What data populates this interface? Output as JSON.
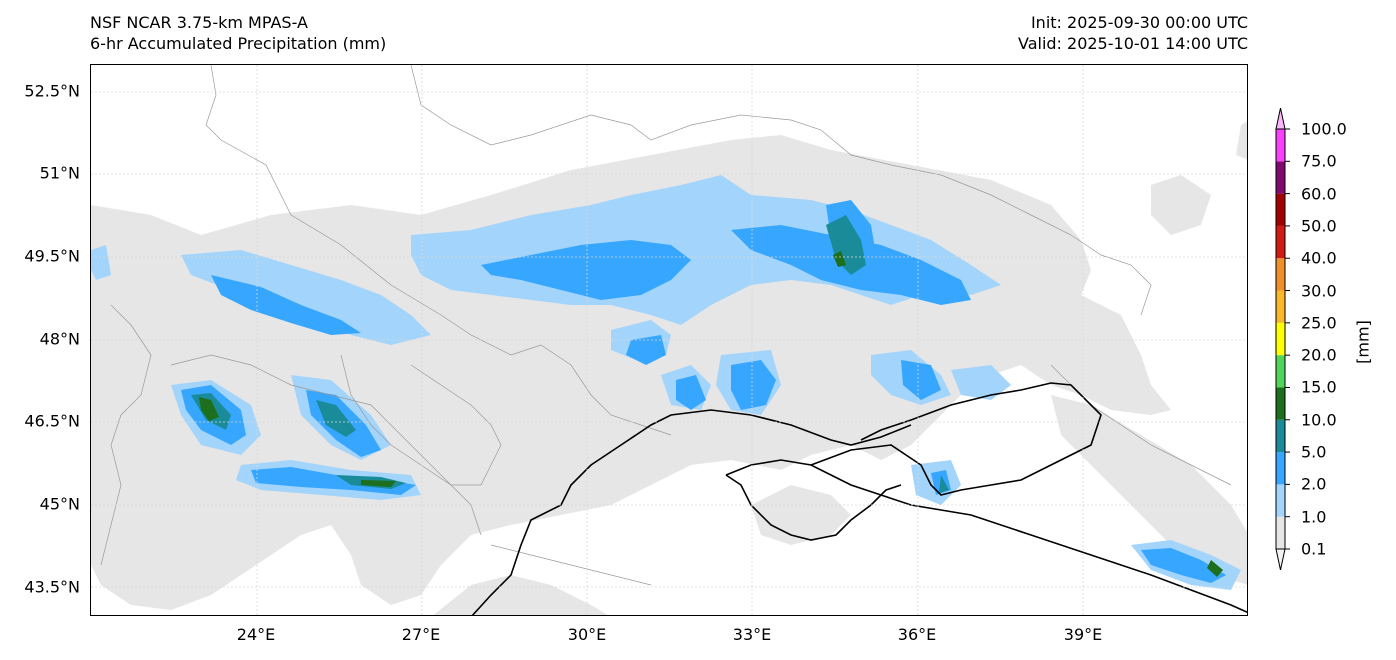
{
  "header": {
    "model": "NSF NCAR 3.75-km MPAS-A",
    "field": "6-hr Accumulated Precipitation (mm)",
    "init": "Init: 2025-09-30 00:00 UTC",
    "valid": "Valid: 2025-10-01 14:00 UTC"
  },
  "axes": {
    "lat_labels": [
      "52.5°N",
      "51°N",
      "49.5°N",
      "48°N",
      "46.5°N",
      "45°N",
      "43.5°N"
    ],
    "lon_labels": [
      "24°E",
      "27°E",
      "30°E",
      "33°E",
      "36°E",
      "39°E"
    ]
  },
  "colorbar": {
    "unit": "[mm]",
    "levels": [
      "0.1",
      "1.0",
      "2.0",
      "5.0",
      "10.0",
      "15.0",
      "20.0",
      "25.0",
      "30.0",
      "40.0",
      "50.0",
      "60.0",
      "75.0",
      "100.0"
    ],
    "colors": [
      "#e6e6e6",
      "#a3d4fb",
      "#36a6ff",
      "#1a8c99",
      "#1d6e1d",
      "#4fd65a",
      "#ffff00",
      "#fbb72a",
      "#f0902a",
      "#d11a12",
      "#a30000",
      "#800a70",
      "#fa41fa"
    ]
  }
}
